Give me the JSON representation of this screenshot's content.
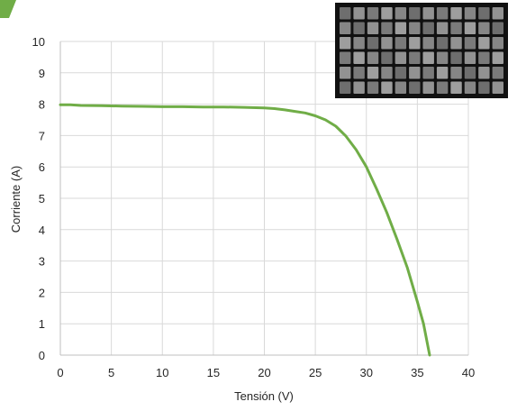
{
  "colors": {
    "series": "#70AD47",
    "corner_tab": "#70AD47",
    "grid": "#D9D9D9",
    "axis": "#BFBFBF",
    "inset_frame": "#111111",
    "inset_cell": "#8a8a8a"
  },
  "chart_data": {
    "type": "line",
    "title": "",
    "xlabel": "Tensión (V)",
    "ylabel": "Corriente (A)",
    "xlim": [
      0,
      40
    ],
    "ylim": [
      0,
      10
    ],
    "grid": true,
    "legend": "none",
    "xticks": [
      "0",
      "5",
      "10",
      "15",
      "20",
      "25",
      "30",
      "35",
      "40"
    ],
    "yticks": [
      "0",
      "1",
      "2",
      "3",
      "4",
      "5",
      "6",
      "7",
      "8",
      "9",
      "10"
    ],
    "series": [
      {
        "values": [
          [
            0,
            7.98
          ],
          [
            1,
            7.98
          ],
          [
            2,
            7.96
          ],
          [
            4,
            7.95
          ],
          [
            6,
            7.94
          ],
          [
            8,
            7.93
          ],
          [
            10,
            7.92
          ],
          [
            12,
            7.92
          ],
          [
            14,
            7.91
          ],
          [
            16,
            7.91
          ],
          [
            18,
            7.9
          ],
          [
            20,
            7.88
          ],
          [
            21,
            7.86
          ],
          [
            22,
            7.82
          ],
          [
            23,
            7.77
          ],
          [
            24,
            7.72
          ],
          [
            25,
            7.63
          ],
          [
            26,
            7.5
          ],
          [
            27,
            7.3
          ],
          [
            28,
            6.98
          ],
          [
            29,
            6.55
          ],
          [
            30,
            6.0
          ],
          [
            31,
            5.3
          ],
          [
            32,
            4.55
          ],
          [
            33,
            3.7
          ],
          [
            34,
            2.8
          ],
          [
            35,
            1.7
          ],
          [
            35.6,
            1.0
          ],
          [
            36.2,
            0.0
          ]
        ]
      }
    ],
    "inset": "electroluminescence image of the solar module (dark grid of cells)"
  }
}
